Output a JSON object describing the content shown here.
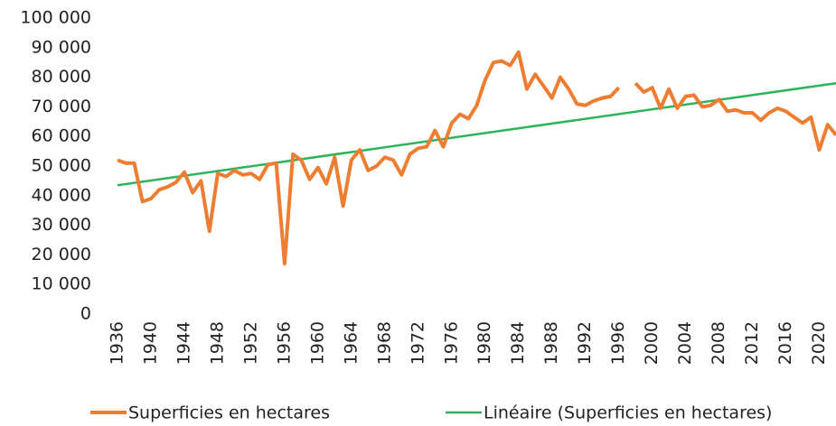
{
  "chart_data": {
    "type": "line",
    "x": [
      1936,
      1937,
      1938,
      1939,
      1940,
      1941,
      1942,
      1943,
      1944,
      1945,
      1946,
      1947,
      1948,
      1949,
      1950,
      1951,
      1952,
      1953,
      1954,
      1955,
      1956,
      1957,
      1958,
      1959,
      1960,
      1961,
      1962,
      1963,
      1964,
      1965,
      1966,
      1967,
      1968,
      1969,
      1970,
      1971,
      1972,
      1973,
      1974,
      1975,
      1976,
      1977,
      1978,
      1979,
      1980,
      1981,
      1982,
      1983,
      1984,
      1985,
      1986,
      1987,
      1988,
      1989,
      1990,
      1991,
      1992,
      1993,
      1994,
      1995,
      1996,
      1997,
      1998,
      1999,
      2000,
      2001,
      2002,
      2003,
      2004,
      2005,
      2006,
      2007,
      2008,
      2009,
      2010,
      2011,
      2012,
      2013,
      2014,
      2015,
      2016,
      2017,
      2018,
      2019,
      2020,
      2021,
      2022
    ],
    "series": [
      {
        "name": "Superficies en hectares",
        "color": "#ee7d31",
        "values": [
          52000,
          51000,
          51000,
          38000,
          39000,
          42000,
          43000,
          44500,
          48000,
          41000,
          45000,
          28000,
          47500,
          46500,
          48500,
          47000,
          47500,
          45500,
          50500,
          51000,
          17000,
          54000,
          52000,
          45500,
          49500,
          44000,
          53000,
          36500,
          52000,
          55500,
          48500,
          50000,
          53000,
          52000,
          47000,
          54000,
          56000,
          56500,
          62000,
          56500,
          64500,
          67500,
          66000,
          70500,
          79000,
          85000,
          85500,
          84000,
          88500,
          76000,
          81000,
          77000,
          73000,
          80000,
          76000,
          71000,
          70500,
          72000,
          73000,
          73500,
          76500,
          null,
          78000,
          75000,
          76500,
          69500,
          76000,
          69500,
          73500,
          74000,
          70000,
          70500,
          72500,
          68500,
          69000,
          68000,
          68000,
          65500,
          68000,
          69500,
          68500,
          66500,
          64500,
          66500,
          55500,
          64000,
          60500
        ]
      },
      {
        "name": "Linéaire (Superficies en hectares)",
        "color": "#2db35a",
        "x": [
          1936,
          2022
        ],
        "values": [
          43500,
          78000
        ]
      }
    ],
    "xlim": [
      1936,
      2022
    ],
    "xticks": [
      1936,
      1940,
      1944,
      1948,
      1952,
      1956,
      1960,
      1964,
      1968,
      1972,
      1976,
      1980,
      1984,
      1988,
      1992,
      1996,
      2000,
      2004,
      2008,
      2012,
      2016,
      2020
    ],
    "ylim": [
      0,
      100000
    ],
    "yticks": [
      0,
      {
        "value": 10000,
        "label": "10 000"
      },
      {
        "value": 20000,
        "label": "20 000"
      },
      {
        "value": 30000,
        "label": "30 000"
      },
      {
        "value": 40000,
        "label": "40 000"
      },
      {
        "value": 50000,
        "label": "50 000"
      },
      {
        "value": 60000,
        "label": "60 000"
      },
      {
        "value": 70000,
        "label": "70 000"
      },
      {
        "value": 80000,
        "label": "80 000"
      },
      {
        "value": 90000,
        "label": "90 000"
      },
      {
        "value": 100000,
        "label": "100 000"
      }
    ],
    "legend": "bottom"
  }
}
